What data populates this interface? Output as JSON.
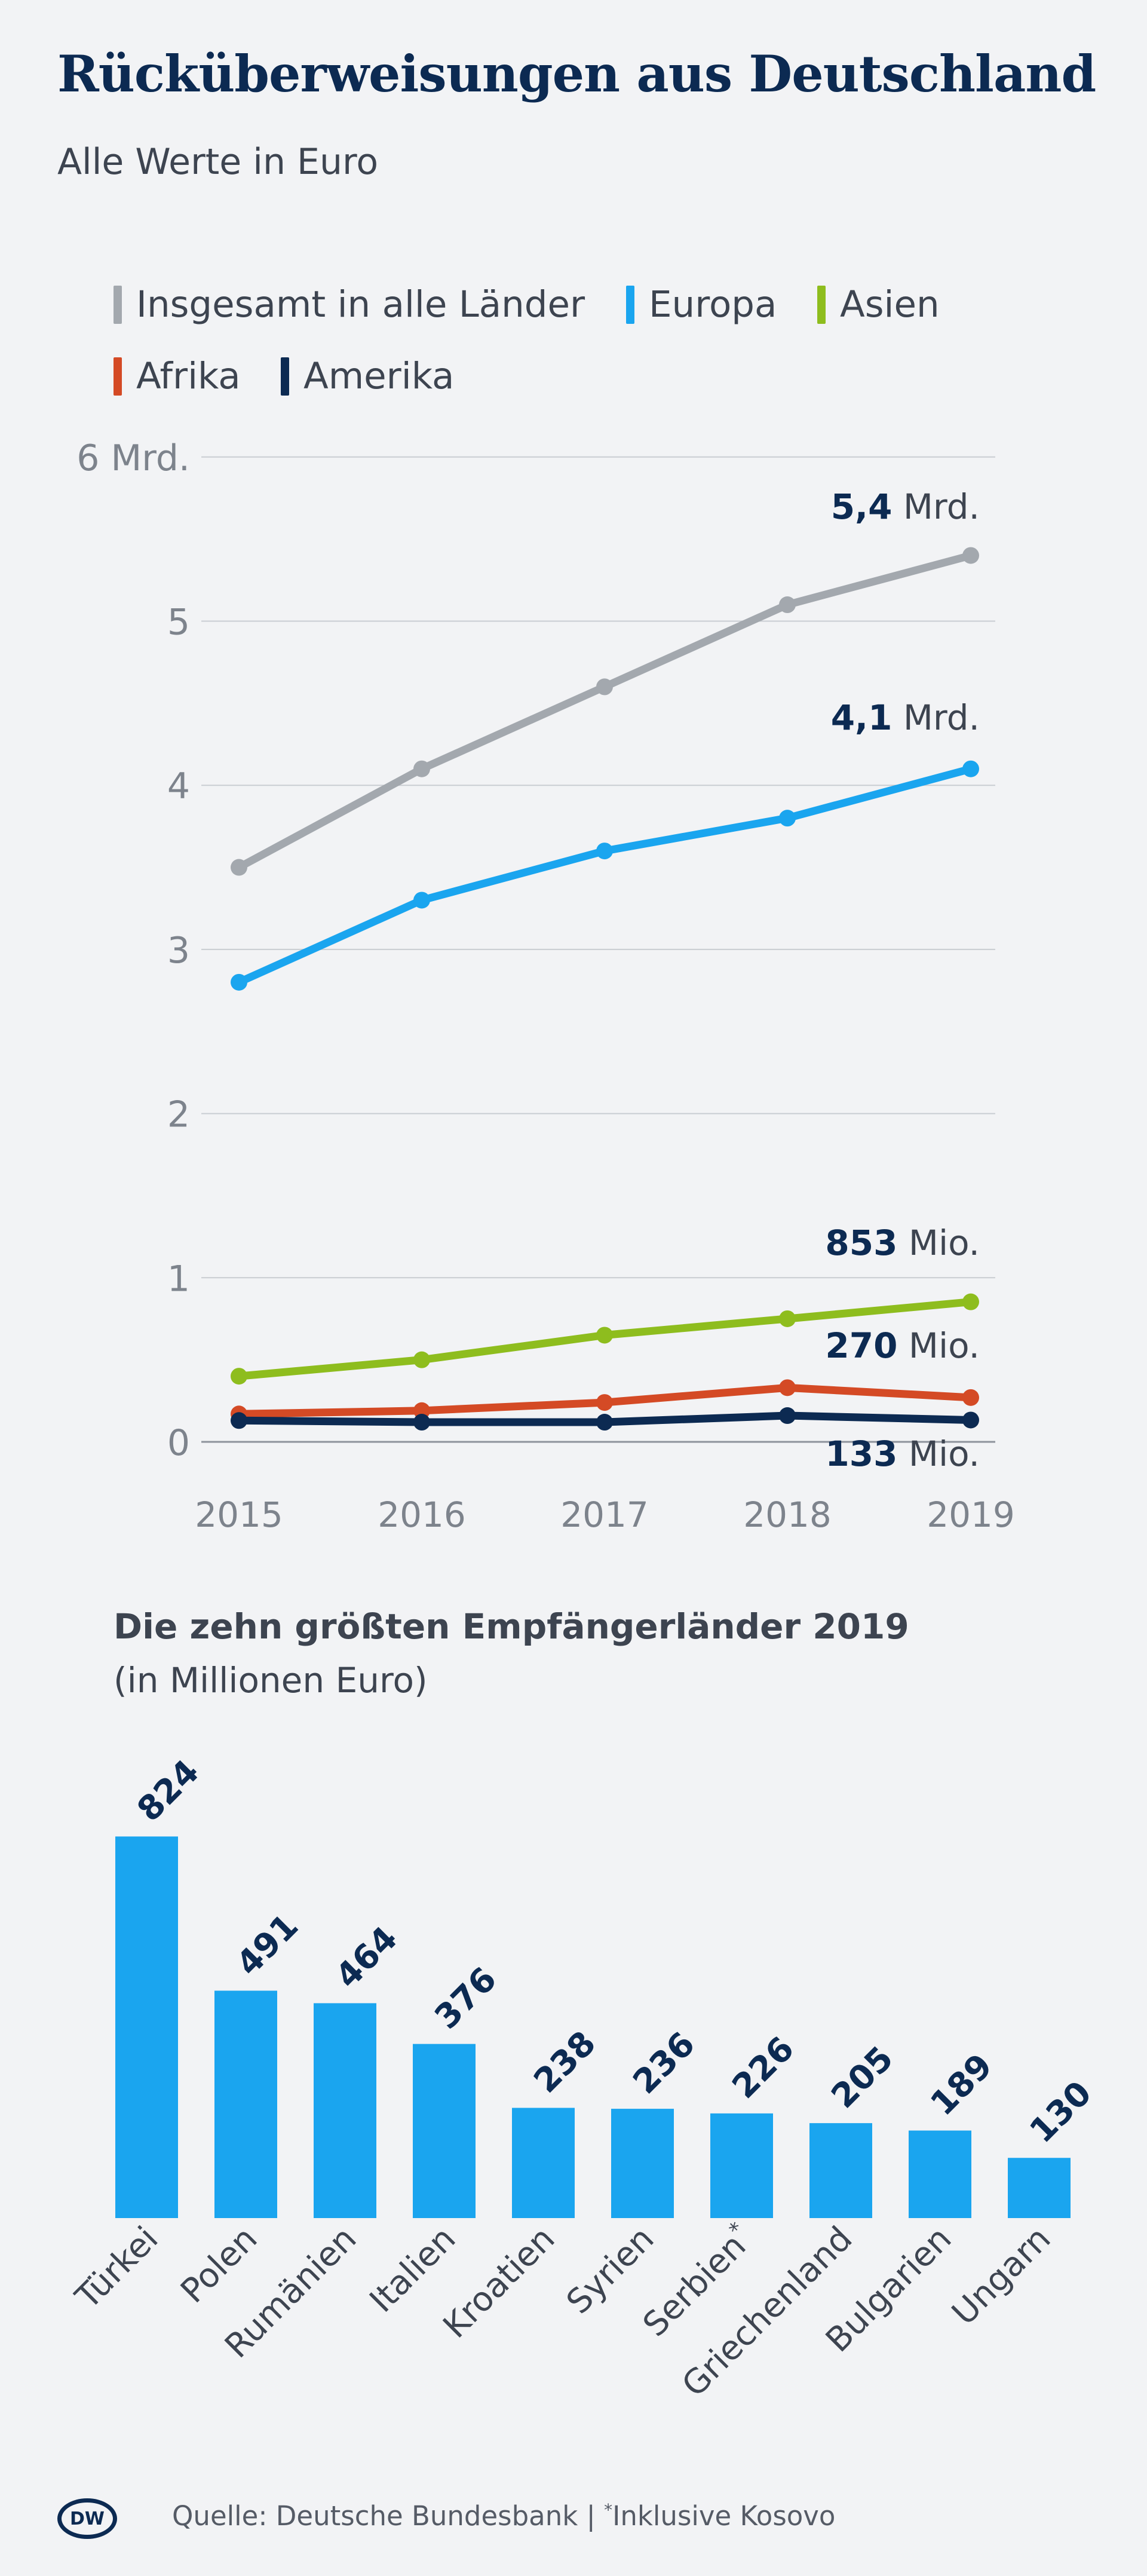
{
  "header": {
    "title": "Rücküberweisungen aus Deutschland",
    "subtitle": "Alle Werte in Euro"
  },
  "legend": [
    {
      "label": "Insgesamt in alle Länder",
      "color": "#a3a8ae"
    },
    {
      "label": "Europa",
      "color": "#1aa5ef"
    },
    {
      "label": "Asien",
      "color": "#8ebd1e"
    },
    {
      "label": "Afrika",
      "color": "#d44a25"
    },
    {
      "label": "Amerika",
      "color": "#0c2a52"
    }
  ],
  "chart_data": [
    {
      "type": "line",
      "x": [
        "2015",
        "2016",
        "2017",
        "2018",
        "2019"
      ],
      "ylim": [
        0,
        6
      ],
      "yticks": [
        "0",
        "1",
        "2",
        "3",
        "4",
        "5",
        "6 Mrd."
      ],
      "grid": true,
      "legend_position": "top",
      "series": [
        {
          "name": "Insgesamt in alle Länder",
          "color": "#a3a8ae",
          "values": [
            3.5,
            4.1,
            4.6,
            5.1,
            5.4
          ],
          "end_label": {
            "bold": "5,4",
            "rest": " Mrd."
          }
        },
        {
          "name": "Europa",
          "color": "#1aa5ef",
          "values": [
            2.8,
            3.3,
            3.6,
            3.8,
            4.1
          ],
          "end_label": {
            "bold": "4,1",
            "rest": " Mrd."
          }
        },
        {
          "name": "Asien",
          "color": "#8ebd1e",
          "values": [
            0.4,
            0.5,
            0.65,
            0.75,
            0.853
          ],
          "end_label": {
            "bold": "853",
            "rest": " Mio."
          }
        },
        {
          "name": "Afrika",
          "color": "#d44a25",
          "values": [
            0.17,
            0.19,
            0.24,
            0.33,
            0.27
          ],
          "end_label": {
            "bold": "270",
            "rest": " Mio."
          }
        },
        {
          "name": "Amerika",
          "color": "#0c2a52",
          "values": [
            0.13,
            0.12,
            0.12,
            0.16,
            0.133
          ],
          "end_label": {
            "bold": "133",
            "rest": " Mio."
          }
        }
      ]
    },
    {
      "type": "bar",
      "title": "Die zehn größten Empfängerländer 2019",
      "subtitle": "(in Millionen Euro)",
      "color": "#1aa5ef",
      "categories": [
        "Türkei",
        "Polen",
        "Rumänien",
        "Italien",
        "Kroatien",
        "Syrien",
        "Serbien",
        "Griechenland",
        "Bulgarien",
        "Ungarn"
      ],
      "category_marks": [
        "",
        "",
        "",
        "",
        "",
        "",
        "*",
        "",
        "",
        ""
      ],
      "values": [
        824,
        491,
        464,
        376,
        238,
        236,
        226,
        205,
        189,
        130
      ],
      "value_labels": [
        "824",
        "491",
        "464",
        "376",
        "238",
        "236",
        "226",
        "205",
        "189",
        "130"
      ]
    }
  ],
  "footer": {
    "logo_text": "DW",
    "source_prefix": "Quelle: Deutsche Bundesbank | ",
    "source_mark": "*",
    "source_note": "Inklusive Kosovo"
  }
}
